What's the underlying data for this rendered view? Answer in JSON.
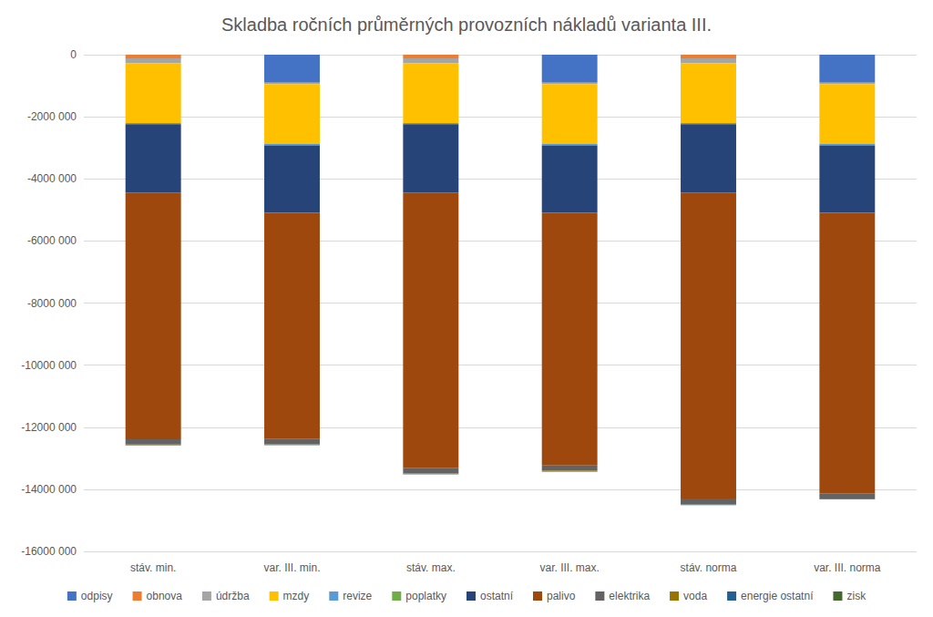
{
  "chart_data": {
    "type": "bar",
    "title": "Skladba ročních průměrných provozních nákladů varianta III.",
    "categories": [
      "stáv. min.",
      "var. III. min.",
      "stáv. max.",
      "var. III. max.",
      "stáv. norma",
      "var. III. norma"
    ],
    "stacked": true,
    "grid": true,
    "legend": "bottom",
    "ylim": [
      -16000000,
      0
    ],
    "yticks": [
      {
        "value": -16000000,
        "label": "-16000 000"
      },
      {
        "value": -14000000,
        "label": "-14000 000"
      },
      {
        "value": -12000000,
        "label": "-12000 000"
      },
      {
        "value": -10000000,
        "label": "-10000 000"
      },
      {
        "value": -8000000,
        "label": "-8000 000"
      },
      {
        "value": -6000000,
        "label": "-6000 000"
      },
      {
        "value": -4000000,
        "label": "-4000 000"
      },
      {
        "value": -2000000,
        "label": "-2000 000"
      },
      0
    ],
    "series": [
      {
        "name": "odpisy",
        "color": "#4472C4",
        "values": [
          0,
          -900000,
          0,
          -900000,
          0,
          -900000
        ]
      },
      {
        "name": "obnova",
        "color": "#ED7D31",
        "values": [
          -120000,
          0,
          -120000,
          0,
          -120000,
          0
        ]
      },
      {
        "name": "údržba",
        "color": "#A5A5A5",
        "values": [
          -150000,
          -50000,
          -150000,
          -50000,
          -150000,
          -50000
        ]
      },
      {
        "name": "mzdy",
        "color": "#FFC000",
        "values": [
          -1930000,
          -1930000,
          -1930000,
          -1930000,
          -1930000,
          -1930000
        ]
      },
      {
        "name": "revize",
        "color": "#5B9BD5",
        "values": [
          -30000,
          -30000,
          -30000,
          -30000,
          -30000,
          -30000
        ]
      },
      {
        "name": "poplatky",
        "color": "#70AD47",
        "values": [
          -10000,
          -10000,
          -10000,
          -10000,
          -10000,
          -10000
        ]
      },
      {
        "name": "ostatní",
        "color": "#264478",
        "values": [
          -2200000,
          -2170000,
          -2200000,
          -2170000,
          -2200000,
          -2170000
        ]
      },
      {
        "name": "palivo",
        "color": "#9E480E",
        "values": [
          -7950000,
          -7290000,
          -8870000,
          -8140000,
          -9860000,
          -9040000
        ]
      },
      {
        "name": "elektrika",
        "color": "#636363",
        "values": [
          -170000,
          -170000,
          -180000,
          -170000,
          -180000,
          -170000
        ]
      },
      {
        "name": "voda",
        "color": "#997300",
        "values": [
          -20000,
          -20000,
          -20000,
          -20000,
          -20000,
          -20000
        ]
      },
      {
        "name": "energie ostatní",
        "color": "#255E91",
        "values": [
          -10000,
          -10000,
          -10000,
          -10000,
          -10000,
          -10000
        ]
      },
      {
        "name": "zisk",
        "color": "#43682B",
        "values": [
          0,
          0,
          0,
          0,
          0,
          0
        ]
      }
    ]
  }
}
